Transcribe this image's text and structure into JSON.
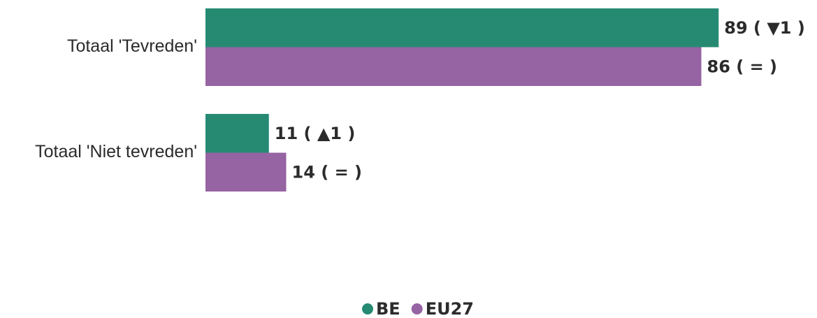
{
  "chart_data": {
    "type": "hbar",
    "categories": [
      "Totaal 'Tevreden'",
      "Totaal 'Niet tevreden'"
    ],
    "series": [
      {
        "name": "BE",
        "color": "#268a73",
        "values": [
          89,
          11
        ],
        "value_labels": [
          "89 ( ▼1 )",
          "11 ( ▲1 )"
        ]
      },
      {
        "name": "EU27",
        "color": "#9663a3",
        "values": [
          86,
          14
        ],
        "value_labels": [
          "86 ( = )",
          "14 ( = )"
        ]
      }
    ],
    "xlim": [
      0,
      100
    ]
  }
}
